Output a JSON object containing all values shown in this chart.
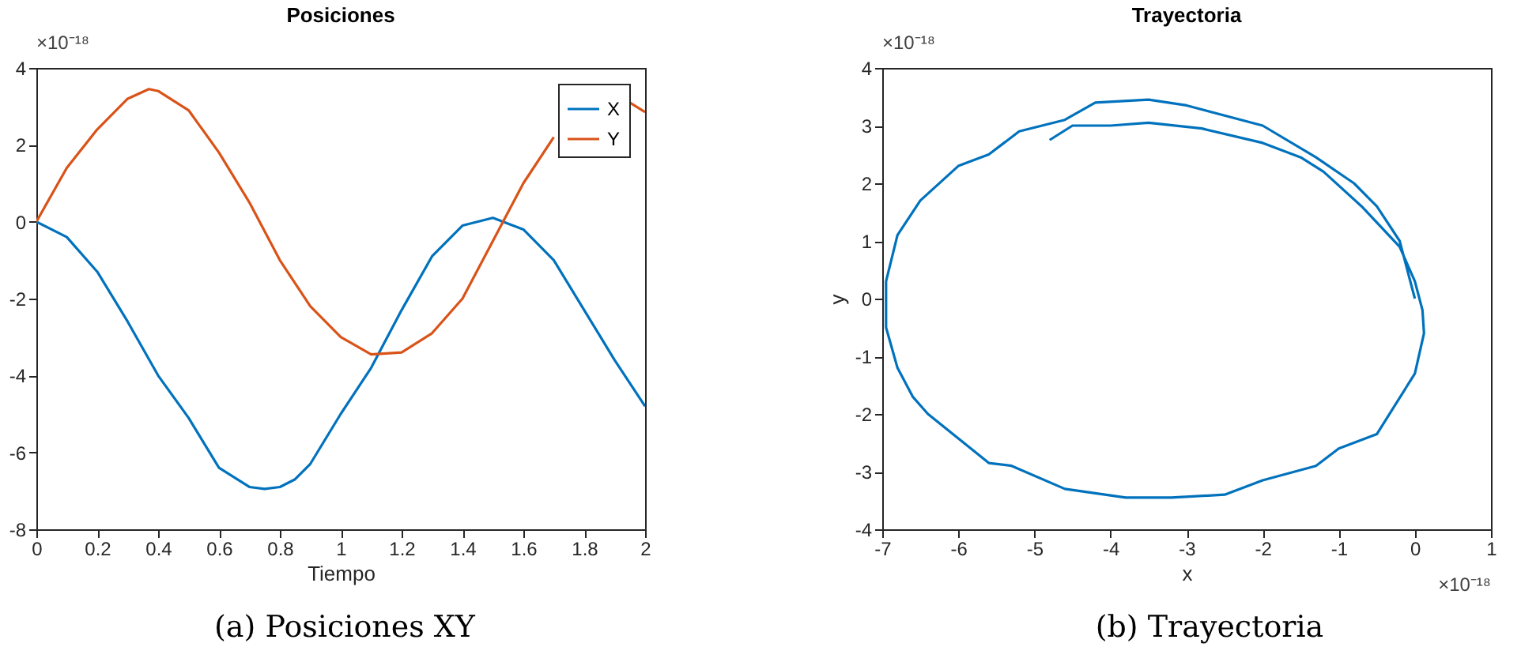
{
  "chart_data": [
    {
      "type": "line",
      "title": "Posiciones",
      "xlabel": "Tiempo",
      "xlim": [
        0,
        2
      ],
      "xticks": [
        0,
        0.2,
        0.4,
        0.6,
        0.8,
        1,
        1.2,
        1.4,
        1.6,
        1.8,
        2
      ],
      "ylim": [
        -8,
        4
      ],
      "yticks": [
        -8,
        -6,
        -4,
        -2,
        0,
        2,
        4
      ],
      "legend": "top right",
      "grid": false,
      "annotations": [
        "×10⁻¹⁸",
        "(a) Posiciones XY"
      ],
      "series": [
        {
          "name": "X",
          "color": "#0072bd",
          "x": [
            0,
            0.1,
            0.2,
            0.3,
            0.4,
            0.5,
            0.6,
            0.7,
            0.75,
            0.8,
            0.85,
            0.9,
            1.0,
            1.1,
            1.2,
            1.3,
            1.4,
            1.5,
            1.6,
            1.7,
            1.8,
            1.9,
            2.0
          ],
          "values": [
            0,
            -0.4,
            -1.3,
            -2.6,
            -4.0,
            -5.1,
            -6.4,
            -6.9,
            -6.95,
            -6.9,
            -6.7,
            -6.3,
            -5.0,
            -3.8,
            -2.3,
            -0.9,
            -0.1,
            0.1,
            -0.2,
            -1.0,
            -2.3,
            -3.6,
            -4.8
          ]
        },
        {
          "name": "Y",
          "color": "#d95319",
          "x": [
            0,
            0.1,
            0.2,
            0.3,
            0.37,
            0.4,
            0.5,
            0.6,
            0.7,
            0.8,
            0.9,
            1.0,
            1.1,
            1.2,
            1.3,
            1.4,
            1.5,
            1.6,
            1.7,
            1.8,
            1.9,
            1.95,
            2.0
          ],
          "values": [
            0,
            1.4,
            2.4,
            3.2,
            3.45,
            3.4,
            2.9,
            1.8,
            0.5,
            -1.0,
            -2.2,
            -3.0,
            -3.45,
            -3.4,
            -2.9,
            -2.0,
            -0.5,
            1.0,
            2.2,
            null,
            null,
            3.1,
            2.85
          ]
        }
      ]
    },
    {
      "type": "line",
      "title": "Trayectoria",
      "xlabel": "x",
      "ylabel": "y",
      "xlim": [
        -7,
        1
      ],
      "xticks": [
        -7,
        -6,
        -5,
        -4,
        -3,
        -2,
        -1,
        0,
        1
      ],
      "ylim": [
        -4,
        4
      ],
      "yticks": [
        -4,
        -3,
        -2,
        -1,
        0,
        1,
        2,
        3,
        4
      ],
      "grid": false,
      "annotations": [
        "×10⁻¹⁸",
        "×10⁻¹⁸",
        "(b) Trayectoria"
      ],
      "series": [
        {
          "color": "#0072bd",
          "x": [
            0,
            -0.2,
            -0.5,
            -0.8,
            -1.3,
            -2.0,
            -3.0,
            -3.5,
            -4.2,
            -4.6,
            -5.2,
            -5.6,
            -6.0,
            -6.5,
            -6.8,
            -6.95,
            -6.95,
            -6.8,
            -6.6,
            -6.4,
            -5.6,
            -5.3,
            -4.6,
            -3.8,
            -3.2,
            -2.5,
            -2.0,
            -1.3,
            -1.0,
            -0.5,
            0.0,
            0.12,
            0.1,
            0.0,
            -0.2,
            -0.7,
            -1.2,
            -1.5,
            -2.0,
            -2.8,
            -3.5,
            -4.0,
            -4.5,
            -4.8
          ],
          "values": [
            0,
            1.0,
            1.6,
            2.0,
            2.45,
            3.0,
            3.35,
            3.45,
            3.4,
            3.1,
            2.9,
            2.5,
            2.3,
            1.7,
            1.1,
            0.3,
            -0.5,
            -1.2,
            -1.7,
            -2.0,
            -2.85,
            -2.9,
            -3.3,
            -3.45,
            -3.45,
            -3.4,
            -3.15,
            -2.9,
            -2.6,
            -2.35,
            -1.3,
            -0.6,
            -0.2,
            0.3,
            0.9,
            1.6,
            2.2,
            2.45,
            2.7,
            2.95,
            3.05,
            3.0,
            3.0,
            2.75
          ]
        }
      ]
    }
  ]
}
